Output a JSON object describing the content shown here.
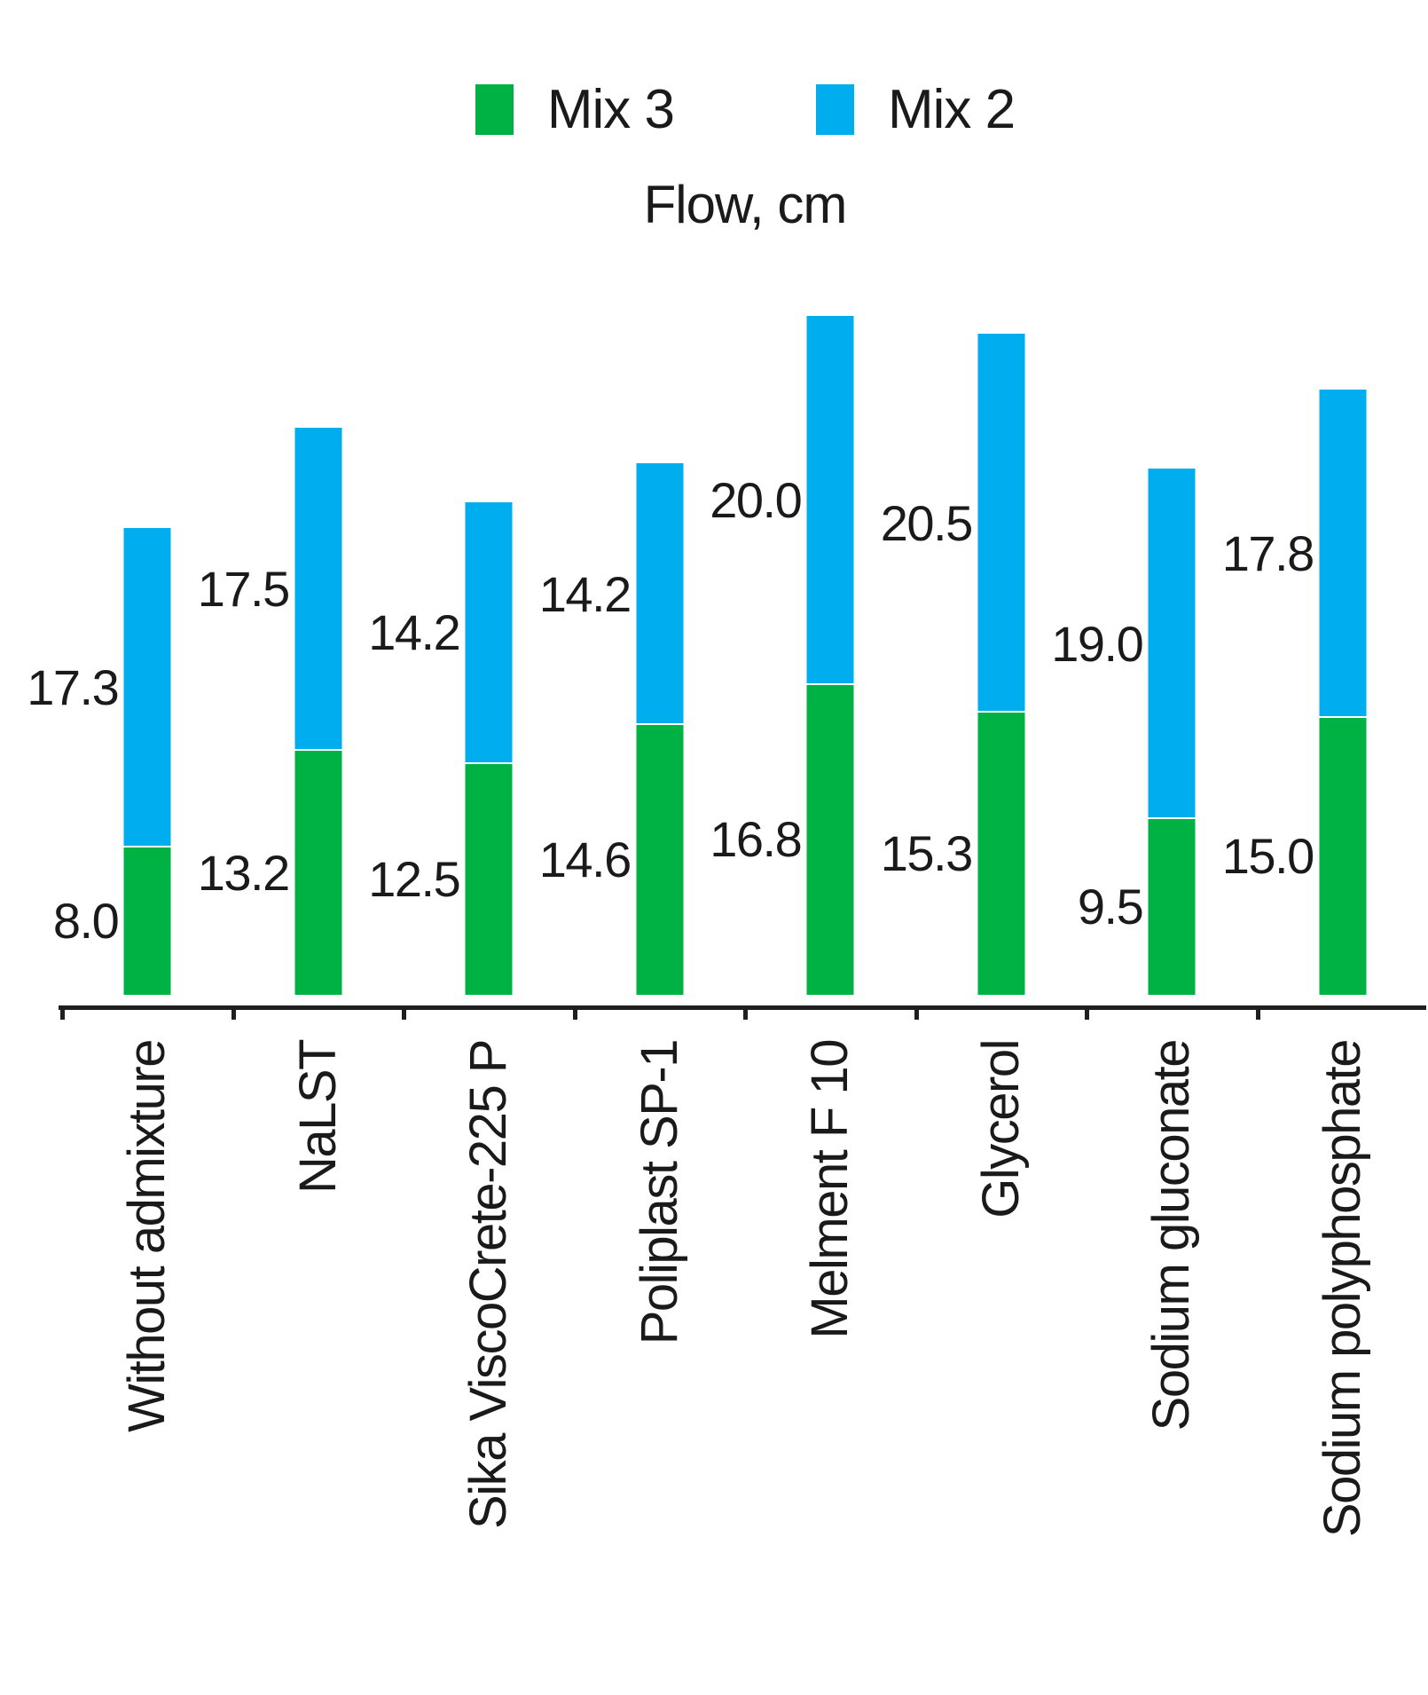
{
  "title": "Flow, cm",
  "legend": [
    {
      "label": "Mix 3",
      "color": "#00B144"
    },
    {
      "label": "Mix 2",
      "color": "#00AEEF"
    }
  ],
  "chart_data": {
    "type": "bar",
    "stacked": true,
    "orientation": "vertical",
    "title": "Flow, cm",
    "xlabel": "",
    "ylabel": "Flow, cm",
    "grid": false,
    "legend_position": "top",
    "value_labels": "left-of-segment, one decimal",
    "ylim": [
      0,
      38
    ],
    "categories": [
      "Without admixture",
      "NaLST",
      "Sika ViscoCrete-225 P",
      "Poliplast SP-1",
      "Melment F 10",
      "Glycerol",
      "Sodium gluconate",
      "Sodium polyphosphate"
    ],
    "series": [
      {
        "name": "Mix 3",
        "color": "#00B144",
        "stack_order": "bottom",
        "values": [
          8.0,
          13.2,
          12.5,
          14.6,
          16.8,
          15.3,
          9.5,
          15.0
        ]
      },
      {
        "name": "Mix 2",
        "color": "#00AEEF",
        "stack_order": "top",
        "values": [
          17.3,
          17.5,
          14.2,
          14.2,
          20.0,
          20.5,
          19.0,
          17.8
        ]
      }
    ]
  },
  "colors": {
    "mix3_green": "#00B144",
    "mix2_blue": "#00AEEF",
    "text": "#1a1a1a",
    "axis": "#1f1f1f",
    "background": "#ffffff"
  }
}
